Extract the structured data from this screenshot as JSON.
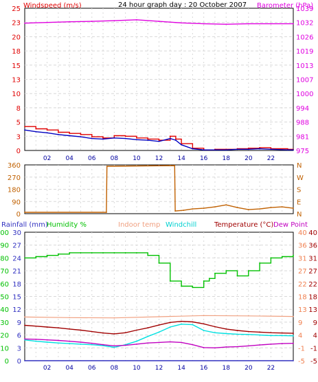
{
  "title": "24 hour graph day : 20 October 2007",
  "colors": {
    "wind": "#e00000",
    "gust_avg": "#0000c0",
    "barometer": "#e000e0",
    "direction": "#c06000",
    "rainfall": "#3030c0",
    "humidity": "#00c000",
    "indoor": "#f0a080",
    "windchill": "#00e0e0",
    "temperature": "#a00000",
    "dewpoint": "#c000c0",
    "grid": "#d8d8d8"
  },
  "x_ticks": [
    "02",
    "04",
    "06",
    "08",
    "10",
    "12",
    "14",
    "16",
    "18",
    "20",
    "22"
  ],
  "chart_data": [
    {
      "type": "line",
      "id": "wind-barometer",
      "left_label": "Windspeed (m/s)",
      "right_label": "Barometer (hPa)",
      "ylim_left": [
        0,
        25
      ],
      "yticks_left": [
        "25",
        "23",
        "20",
        "18",
        "15",
        "13",
        "10",
        "8",
        "5",
        "3",
        "0"
      ],
      "ylim_right": [
        975,
        1039
      ],
      "yticks_right": [
        "1039",
        "1032",
        "1026",
        "1019",
        "1013",
        "1007",
        "1000",
        "994",
        "988",
        "981",
        "975"
      ],
      "series": [
        {
          "key": "wind",
          "x": [
            0,
            1,
            2,
            3,
            4,
            5,
            6,
            7,
            8,
            9,
            10,
            11,
            12,
            13,
            13.5,
            14,
            15,
            16,
            17,
            18,
            19,
            20,
            21,
            22,
            23.5,
            24
          ],
          "values": [
            4.2,
            3.8,
            3.6,
            3.2,
            3.0,
            2.8,
            2.4,
            2.2,
            2.6,
            2.5,
            2.2,
            2.0,
            1.8,
            2.5,
            2.0,
            1.2,
            0.4,
            0.1,
            0.2,
            0.2,
            0.3,
            0.4,
            0.5,
            0.3,
            0.2,
            0.2
          ]
        },
        {
          "key": "gust_avg",
          "x": [
            0,
            1,
            2,
            3,
            4,
            5,
            6,
            7,
            8,
            9,
            10,
            11,
            12,
            13,
            13.5,
            14,
            15,
            16,
            17,
            18,
            19,
            20,
            21,
            22,
            23.5,
            24
          ],
          "values": [
            3.6,
            3.3,
            3.1,
            2.8,
            2.6,
            2.4,
            2.1,
            2.0,
            2.2,
            2.1,
            1.9,
            1.8,
            1.6,
            2.1,
            1.8,
            1.0,
            0.3,
            0.1,
            0.1,
            0.1,
            0.2,
            0.2,
            0.3,
            0.2,
            0.1,
            0.1
          ]
        },
        {
          "key": "barometer",
          "x": [
            0,
            2,
            4,
            6,
            8,
            10,
            12,
            14,
            16,
            18,
            20,
            22,
            24
          ],
          "values": [
            1032.3,
            1032.6,
            1032.9,
            1033.1,
            1033.4,
            1033.8,
            1033.1,
            1032.4,
            1032.0,
            1031.8,
            1032.0,
            1032.0,
            1032.0
          ]
        }
      ]
    },
    {
      "type": "line",
      "id": "wind-direction",
      "ylim_left": [
        0,
        360
      ],
      "yticks_left": [
        "360",
        "270",
        "180",
        "90",
        "0"
      ],
      "yticks_right": [
        "N",
        "W",
        "S",
        "E",
        "N"
      ],
      "series": [
        {
          "key": "direction",
          "x": [
            0,
            7.3,
            7.35,
            13.4,
            13.45,
            14.2,
            15,
            16,
            17,
            18,
            19,
            20,
            21,
            22,
            23,
            24
          ],
          "values": [
            10,
            10,
            350,
            355,
            20,
            25,
            35,
            40,
            50,
            65,
            45,
            30,
            35,
            45,
            50,
            40
          ]
        }
      ]
    },
    {
      "type": "line",
      "id": "temp-humidity",
      "labels": {
        "rainfall": "Rainfall (mm)",
        "humidity": "Humidity %",
        "indoor": "Indoor temp",
        "windchill": "Windchill",
        "temperature": "Temperature (°C)",
        "dewpoint": "Dew Point"
      },
      "yticks_humidity": [
        "100",
        "90",
        "80",
        "70",
        "60",
        "50",
        "40",
        "30",
        "20",
        "10",
        "0"
      ],
      "yticks_rainfall": [
        "30",
        "27",
        "24",
        "21",
        "18",
        "15",
        "12",
        "9",
        "6",
        "3",
        "0"
      ],
      "yticks_temp_a": [
        "40",
        "36",
        "31",
        "27",
        "22",
        "18",
        "13",
        "9",
        "4",
        "-1",
        "-5"
      ],
      "yticks_temp_b": [
        "40",
        "36",
        "31",
        "27",
        "22",
        "18",
        "13",
        "9",
        "4",
        "-1",
        "-5"
      ],
      "ylim_temp": [
        -5,
        40
      ],
      "series": [
        {
          "key": "humidity",
          "x": [
            0,
            1,
            2,
            3,
            4,
            5,
            6,
            7,
            8,
            9,
            10,
            11,
            12,
            13,
            14,
            15,
            16,
            16.5,
            17,
            18,
            19,
            20,
            21,
            22,
            23,
            24
          ],
          "values": [
            80,
            81,
            82,
            83,
            84,
            84,
            84,
            84,
            84,
            84,
            84,
            82,
            76,
            62,
            58,
            57,
            62,
            64,
            68,
            70,
            66,
            70,
            76,
            80,
            81,
            82
          ]
        },
        {
          "key": "indoor",
          "x": [
            0,
            4,
            8,
            12,
            16,
            20,
            24
          ],
          "values": [
            10.3,
            10.1,
            10.0,
            10.4,
            10.8,
            10.7,
            10.5
          ]
        },
        {
          "key": "windchill",
          "x": [
            0,
            1,
            2,
            3,
            4,
            5,
            6,
            7,
            8,
            9,
            10,
            11,
            12,
            13,
            14,
            15,
            16,
            17,
            18,
            19,
            20,
            21,
            22,
            23,
            24
          ],
          "values": [
            2.3,
            1.8,
            1.5,
            1.2,
            1.0,
            0.8,
            0.6,
            0.3,
            -0.3,
            0.6,
            1.8,
            3.5,
            5.0,
            6.8,
            7.8,
            7.6,
            5.6,
            4.8,
            4.5,
            4.3,
            4.2,
            4.0,
            3.8,
            3.8,
            3.7
          ]
        },
        {
          "key": "temperature",
          "x": [
            0,
            1,
            2,
            3,
            4,
            5,
            6,
            7,
            8,
            9,
            10,
            11,
            12,
            13,
            14,
            15,
            16,
            17,
            18,
            19,
            20,
            21,
            22,
            23,
            24
          ],
          "values": [
            7.4,
            7.1,
            6.8,
            6.5,
            6.1,
            5.7,
            5.2,
            4.7,
            4.4,
            4.8,
            5.7,
            6.5,
            7.5,
            8.4,
            8.8,
            8.6,
            7.9,
            6.9,
            6.1,
            5.6,
            5.2,
            5.0,
            4.8,
            4.7,
            4.6
          ]
        },
        {
          "key": "dewpoint",
          "x": [
            0,
            1,
            2,
            3,
            4,
            5,
            6,
            7,
            8,
            9,
            10,
            11,
            12,
            13,
            14,
            15,
            16,
            17,
            18,
            19,
            20,
            21,
            22,
            23,
            24
          ],
          "values": [
            2.6,
            2.5,
            2.3,
            2.1,
            1.8,
            1.5,
            1.1,
            0.6,
            0.2,
            0.4,
            0.8,
            1.2,
            1.4,
            1.6,
            1.4,
            0.6,
            -0.4,
            -0.5,
            -0.2,
            -0.1,
            0.2,
            0.5,
            0.8,
            1.0,
            1.1
          ]
        },
        {
          "key": "rainfall",
          "x": [
            0,
            24
          ],
          "values": [
            0,
            0
          ]
        }
      ]
    }
  ]
}
